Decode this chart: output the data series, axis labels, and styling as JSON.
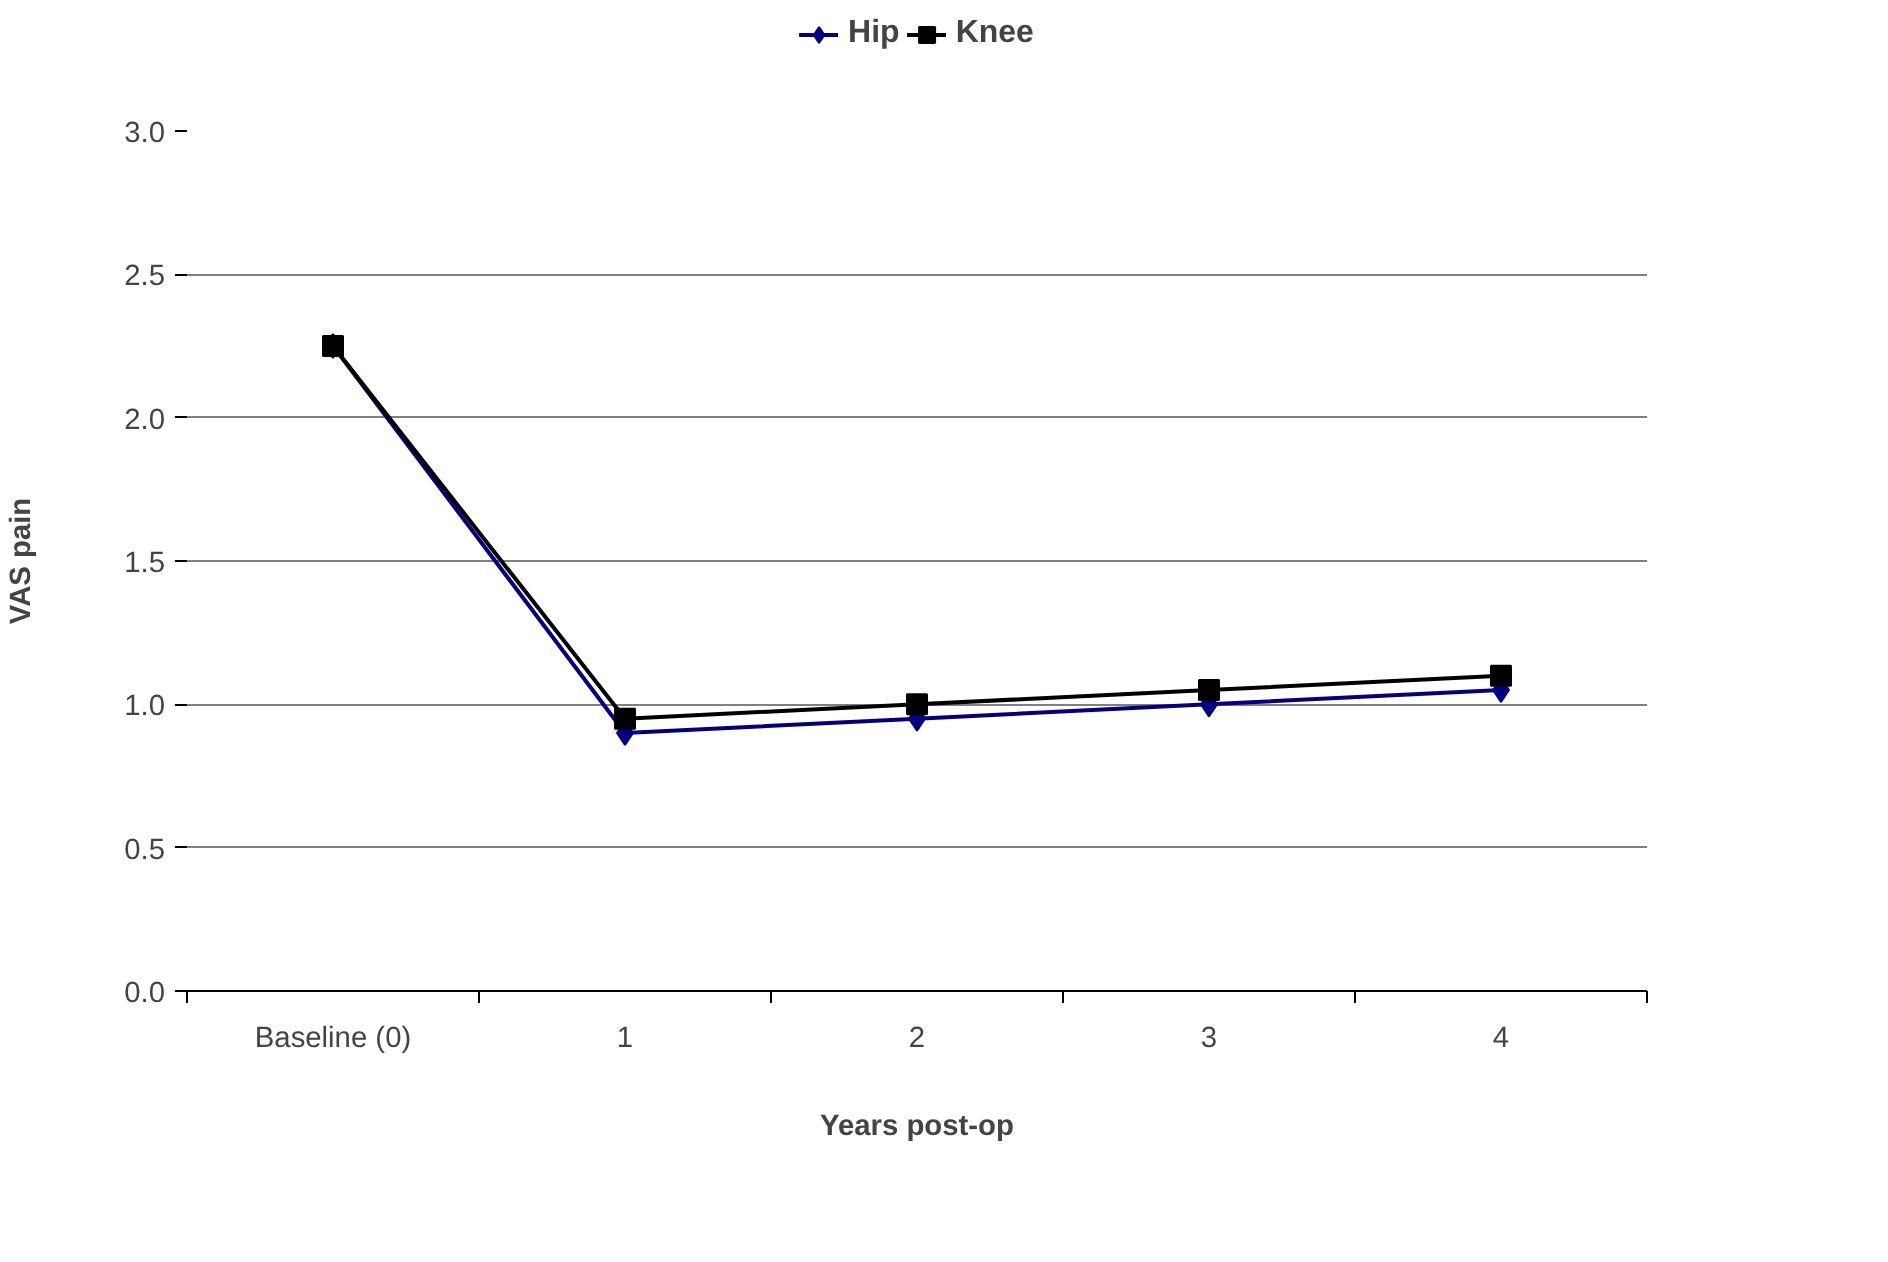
{
  "chart_data": {
    "type": "line",
    "xlabel": "Years post-op",
    "ylabel": "VAS pain",
    "categories": [
      "Baseline (0)",
      "1",
      "2",
      "3",
      "4"
    ],
    "series": [
      {
        "name": "Hip",
        "color": "#000080",
        "marker": "diamond",
        "values": [
          2.25,
          0.9,
          0.95,
          1.0,
          1.05
        ]
      },
      {
        "name": "Knee",
        "color": "#000000",
        "marker": "square",
        "values": [
          2.25,
          0.95,
          1.0,
          1.05,
          1.1
        ]
      }
    ],
    "ylim": [
      0,
      3.0
    ],
    "yticks": [
      {
        "value": 0,
        "label": "0.0"
      },
      {
        "value": 0.5,
        "label": "0.5"
      },
      {
        "value": 1,
        "label": "1.0"
      },
      {
        "value": 1.5,
        "label": "1.5"
      },
      {
        "value": 2,
        "label": "2.0"
      },
      {
        "value": 2.5,
        "label": "2.5"
      },
      {
        "value": 3,
        "label": "3.0"
      }
    ],
    "grid": "y",
    "legend": "top"
  }
}
